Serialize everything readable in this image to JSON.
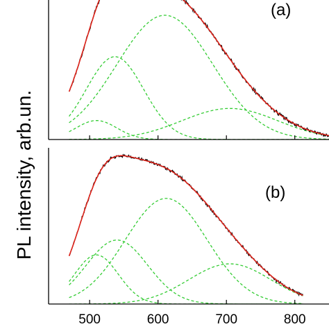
{
  "colors": {
    "measured": "#000000",
    "fit": "#e0241b",
    "components": "#33cc33"
  },
  "chart_data": [
    {
      "type": "line",
      "panel_label": "(a)",
      "ylabel": "PL intensity, arb.un.",
      "xlim": [
        440,
        850
      ],
      "ylim": [
        0,
        1.05
      ],
      "x_ticks": [
        500,
        600,
        700,
        800
      ],
      "x_tick_labels": [
        "500",
        "600",
        "700",
        "800"
      ],
      "measured_range": [
        470,
        850
      ],
      "components": [
        {
          "center": 510,
          "amplitude": 0.11,
          "width": 30
        },
        {
          "center": 537,
          "amplitude": 0.48,
          "width": 42
        },
        {
          "center": 610,
          "amplitude": 0.72,
          "width": 70
        },
        {
          "center": 705,
          "amplitude": 0.18,
          "width": 70
        }
      ],
      "noise": 0.012
    },
    {
      "type": "line",
      "panel_label": "(b)",
      "ylabel": "PL intensity, arb.un.",
      "xlim": [
        440,
        850
      ],
      "ylim": [
        0,
        1.05
      ],
      "x_ticks": [
        500,
        600,
        700,
        800
      ],
      "x_tick_labels": [
        "500",
        "600",
        "700",
        "800"
      ],
      "measured_range": [
        470,
        812
      ],
      "components": [
        {
          "center": 510,
          "amplitude": 0.33,
          "width": 32
        },
        {
          "center": 540,
          "amplitude": 0.43,
          "width": 45
        },
        {
          "center": 612,
          "amplitude": 0.71,
          "width": 60
        },
        {
          "center": 705,
          "amplitude": 0.27,
          "width": 60
        }
      ],
      "noise": 0.012
    }
  ]
}
